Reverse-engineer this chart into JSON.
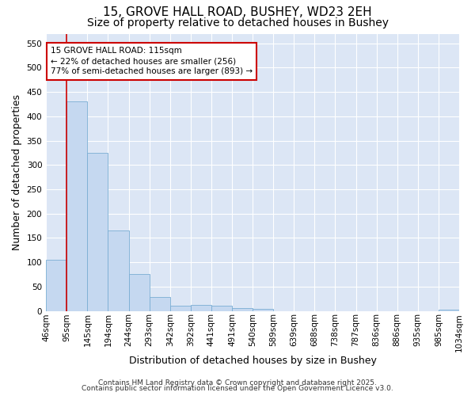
{
  "title_line1": "15, GROVE HALL ROAD, BUSHEY, WD23 2EH",
  "title_line2": "Size of property relative to detached houses in Bushey",
  "xlabel": "Distribution of detached houses by size in Bushey",
  "ylabel": "Number of detached properties",
  "bar_values": [
    105,
    430,
    325,
    165,
    75,
    28,
    10,
    12,
    10,
    5,
    4,
    0,
    0,
    0,
    0,
    0,
    0,
    0,
    0,
    2
  ],
  "categories": [
    "46sqm",
    "95sqm",
    "145sqm",
    "194sqm",
    "244sqm",
    "293sqm",
    "342sqm",
    "392sqm",
    "441sqm",
    "491sqm",
    "540sqm",
    "589sqm",
    "639sqm",
    "688sqm",
    "738sqm",
    "787sqm",
    "836sqm",
    "886sqm",
    "935sqm",
    "985sqm",
    "1034sqm"
  ],
  "bar_color": "#c5d8f0",
  "bar_edge_color": "#7aadd4",
  "fig_background_color": "#ffffff",
  "plot_background_color": "#dce6f5",
  "grid_color": "#ffffff",
  "vline_color": "#cc0000",
  "annotation_text": "15 GROVE HALL ROAD: 115sqm\n← 22% of detached houses are smaller (256)\n77% of semi-detached houses are larger (893) →",
  "annotation_box_color": "#cc0000",
  "annotation_bg": "#ffffff",
  "ylim": [
    0,
    570
  ],
  "yticks": [
    0,
    50,
    100,
    150,
    200,
    250,
    300,
    350,
    400,
    450,
    500,
    550
  ],
  "footer_line1": "Contains HM Land Registry data © Crown copyright and database right 2025.",
  "footer_line2": "Contains public sector information licensed under the Open Government Licence v3.0.",
  "title_fontsize": 11,
  "subtitle_fontsize": 10,
  "axis_label_fontsize": 9,
  "tick_fontsize": 7.5,
  "annotation_fontsize": 7.5,
  "footer_fontsize": 6.5
}
